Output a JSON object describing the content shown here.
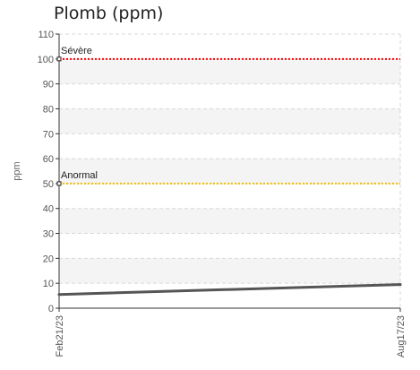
{
  "chart_data": {
    "type": "line",
    "title": "Plomb (ppm)",
    "ylabel": "ppm",
    "xlabel": "",
    "ylim": [
      0,
      110
    ],
    "y_ticks": [
      0,
      10,
      20,
      30,
      40,
      50,
      60,
      70,
      80,
      90,
      100,
      110
    ],
    "x": [
      "Feb21/23",
      "Aug17/23"
    ],
    "series": [
      {
        "values": [
          5.5,
          9.5
        ],
        "color": "#555555"
      }
    ],
    "reference_lines": [
      {
        "label": "Sévère",
        "value": 100,
        "color": "#ff0000"
      },
      {
        "label": "Anormal",
        "value": 50,
        "color": "#f0c000"
      }
    ],
    "grid": true,
    "legend": "none"
  }
}
